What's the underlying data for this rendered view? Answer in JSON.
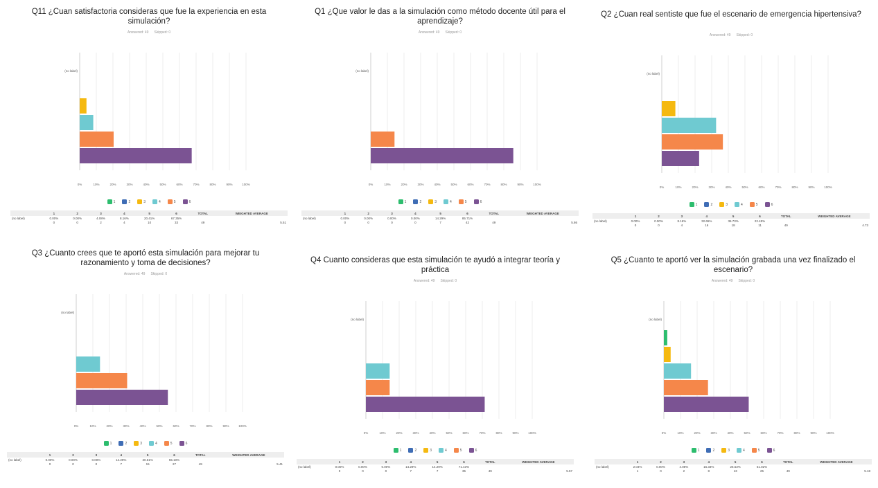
{
  "common": {
    "row_label": "(no label)",
    "x_ticks": [
      "0%",
      "10%",
      "20%",
      "30%",
      "40%",
      "50%",
      "60%",
      "70%",
      "80%",
      "90%",
      "100%"
    ],
    "table_headers": [
      "1",
      "2",
      "3",
      "4",
      "5",
      "6",
      "TOTAL",
      "WEIGHTED AVERAGE"
    ],
    "legend": [
      "1",
      "2",
      "3",
      "4",
      "5",
      "6"
    ],
    "colors": [
      "#2dbd6e",
      "#3f6db5",
      "#f5b910",
      "#6fcad1",
      "#f5874a",
      "#7b5393"
    ]
  },
  "panels": [
    {
      "title": "Q11 ¿Cuan satisfactoria consideras que fue la experiencia en esta simulación?",
      "answered": "Answered: 49",
      "skipped": "Skipped: 0",
      "row_label": "(no label)",
      "pct_text": [
        "0.00%",
        "0.00%",
        "4.08%",
        "8.16%",
        "20.41%",
        "67.35%"
      ],
      "count_text": [
        "0",
        "0",
        "2",
        "4",
        "10",
        "33"
      ],
      "total": "49",
      "wavg": "5.51"
    },
    {
      "title": "Q1 ¿Que valor le das a la  simulación como método docente útil para el aprendizaje?",
      "answered": "Answered: 49",
      "skipped": "Skipped: 0",
      "row_label": "(no label)",
      "pct_text": [
        "0.00%",
        "0.00%",
        "0.00%",
        "0.00%",
        "14.29%",
        "85.71%"
      ],
      "count_text": [
        "0",
        "0",
        "0",
        "0",
        "7",
        "42"
      ],
      "total": "49",
      "wavg": "5.86"
    },
    {
      "title": "Q2 ¿Cuan real sentiste que fue el escenario de emergencia hipertensiva?",
      "answered": "Answered: 49",
      "skipped": "Skipped: 0",
      "row_label": "(no label)",
      "pct_text": [
        "0.00%",
        "0.00%",
        "8.16%",
        "32.65%",
        "36.73%",
        "22.45%"
      ],
      "count_text": [
        "0",
        "0",
        "4",
        "16",
        "18",
        "11"
      ],
      "total": "49",
      "wavg": "4.73"
    },
    {
      "title": "Q3 ¿Cuanto crees que te aportó esta simulación para mejorar tu razonamiento y toma de decisiones?",
      "answered": "Answered: 49",
      "skipped": "Skipped: 0",
      "row_label": "(no label)",
      "pct_text": [
        "0.00%",
        "0.00%",
        "0.00%",
        "14.29%",
        "30.61%",
        "55.10%"
      ],
      "count_text": [
        "0",
        "0",
        "0",
        "7",
        "15",
        "27"
      ],
      "total": "49",
      "wavg": "5.41"
    },
    {
      "title": "Q4 Cuanto consideras que esta simulación te ayudó a integrar teoría y práctica",
      "answered": "Answered: 49",
      "skipped": "Skipped: 0",
      "row_label": "(no label)",
      "pct_text": [
        "0.00%",
        "0.00%",
        "0.00%",
        "14.29%",
        "14.29%",
        "71.43%"
      ],
      "count_text": [
        "0",
        "0",
        "0",
        "7",
        "7",
        "35"
      ],
      "total": "49",
      "wavg": "5.57"
    },
    {
      "title": "Q5 ¿Cuanto te aportó ver la simulación grabada una vez finalizado el escenario?",
      "answered": "Answered: 49",
      "skipped": "Skipped: 0",
      "row_label": "(no label)",
      "pct_text": [
        "2.04%",
        "0.00%",
        "4.08%",
        "16.33%",
        "26.53%",
        "51.02%"
      ],
      "count_text": [
        "1",
        "0",
        "2",
        "8",
        "13",
        "25"
      ],
      "total": "49",
      "wavg": "5.18"
    }
  ],
  "chart_data": [
    {
      "type": "bar",
      "orientation": "horizontal",
      "title": "Q11 ¿Cuan satisfactoria consideras que fue la experiencia en esta simulación?",
      "categories": [
        "(no label)"
      ],
      "series": [
        {
          "name": "1",
          "values": [
            0.0
          ]
        },
        {
          "name": "2",
          "values": [
            0.0
          ]
        },
        {
          "name": "3",
          "values": [
            4.08
          ]
        },
        {
          "name": "4",
          "values": [
            8.16
          ]
        },
        {
          "name": "5",
          "values": [
            20.41
          ]
        },
        {
          "name": "6",
          "values": [
            67.35
          ]
        }
      ],
      "xlim": [
        0,
        100
      ],
      "grid": true,
      "legend": "bottom"
    },
    {
      "type": "bar",
      "orientation": "horizontal",
      "title": "Q1 ¿Que valor le das a la  simulación como método docente útil para el aprendizaje?",
      "categories": [
        "(no label)"
      ],
      "series": [
        {
          "name": "1",
          "values": [
            0.0
          ]
        },
        {
          "name": "2",
          "values": [
            0.0
          ]
        },
        {
          "name": "3",
          "values": [
            0.0
          ]
        },
        {
          "name": "4",
          "values": [
            0.0
          ]
        },
        {
          "name": "5",
          "values": [
            14.29
          ]
        },
        {
          "name": "6",
          "values": [
            85.71
          ]
        }
      ],
      "xlim": [
        0,
        100
      ],
      "grid": true,
      "legend": "bottom"
    },
    {
      "type": "bar",
      "orientation": "horizontal",
      "title": "Q2 ¿Cuan real sentiste que fue el escenario de emergencia hipertensiva?",
      "categories": [
        "(no label)"
      ],
      "series": [
        {
          "name": "1",
          "values": [
            0.0
          ]
        },
        {
          "name": "2",
          "values": [
            0.0
          ]
        },
        {
          "name": "3",
          "values": [
            8.16
          ]
        },
        {
          "name": "4",
          "values": [
            32.65
          ]
        },
        {
          "name": "5",
          "values": [
            36.73
          ]
        },
        {
          "name": "6",
          "values": [
            22.45
          ]
        }
      ],
      "xlim": [
        0,
        100
      ],
      "grid": true,
      "legend": "bottom"
    },
    {
      "type": "bar",
      "orientation": "horizontal",
      "title": "Q3 ¿Cuanto crees que te aportó esta simulación para mejorar tu razonamiento y toma de decisiones?",
      "categories": [
        "(no label)"
      ],
      "series": [
        {
          "name": "1",
          "values": [
            0.0
          ]
        },
        {
          "name": "2",
          "values": [
            0.0
          ]
        },
        {
          "name": "3",
          "values": [
            0.0
          ]
        },
        {
          "name": "4",
          "values": [
            14.29
          ]
        },
        {
          "name": "5",
          "values": [
            30.61
          ]
        },
        {
          "name": "6",
          "values": [
            55.1
          ]
        }
      ],
      "xlim": [
        0,
        100
      ],
      "grid": true,
      "legend": "bottom"
    },
    {
      "type": "bar",
      "orientation": "horizontal",
      "title": "Q4 Cuanto consideras que esta simulación te ayudó a integrar teoría y práctica",
      "categories": [
        "(no label)"
      ],
      "series": [
        {
          "name": "1",
          "values": [
            0.0
          ]
        },
        {
          "name": "2",
          "values": [
            0.0
          ]
        },
        {
          "name": "3",
          "values": [
            0.0
          ]
        },
        {
          "name": "4",
          "values": [
            14.29
          ]
        },
        {
          "name": "5",
          "values": [
            14.29
          ]
        },
        {
          "name": "6",
          "values": [
            71.43
          ]
        }
      ],
      "xlim": [
        0,
        100
      ],
      "grid": true,
      "legend": "bottom"
    },
    {
      "type": "bar",
      "orientation": "horizontal",
      "title": "Q5 ¿Cuanto te aportó ver la simulación grabada una vez finalizado el escenario?",
      "categories": [
        "(no label)"
      ],
      "series": [
        {
          "name": "1",
          "values": [
            2.04
          ]
        },
        {
          "name": "2",
          "values": [
            0.0
          ]
        },
        {
          "name": "3",
          "values": [
            4.08
          ]
        },
        {
          "name": "4",
          "values": [
            16.33
          ]
        },
        {
          "name": "5",
          "values": [
            26.53
          ]
        },
        {
          "name": "6",
          "values": [
            51.02
          ]
        }
      ],
      "xlim": [
        0,
        100
      ],
      "grid": true,
      "legend": "bottom"
    }
  ]
}
